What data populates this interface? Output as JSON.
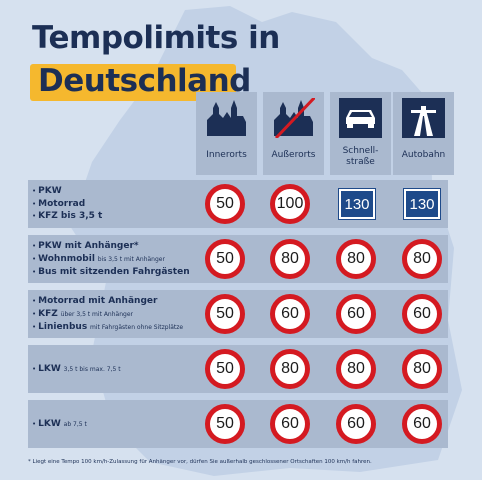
{
  "title": {
    "line1": "Tempolimits in",
    "line2": "Deutschland"
  },
  "columns": [
    {
      "label": "Innerorts",
      "icon": "town-icon"
    },
    {
      "label": "Außerorts",
      "icon": "town-crossed-icon"
    },
    {
      "label": "Schnell-\nstraße",
      "icon": "car-icon"
    },
    {
      "label": "Autobahn",
      "icon": "motorway-icon"
    }
  ],
  "rows": [
    {
      "items": [
        {
          "main": "PKW",
          "sub": ""
        },
        {
          "main": "Motorrad",
          "sub": ""
        },
        {
          "main": "KFZ bis 3,5 t",
          "sub": ""
        }
      ],
      "limits": [
        "50",
        "100",
        "130",
        "130"
      ],
      "kinds": [
        "circle",
        "circle",
        "square",
        "square"
      ]
    },
    {
      "items": [
        {
          "main": "PKW mit Anhänger*",
          "sub": ""
        },
        {
          "main": "Wohnmobil",
          "sub": "bis 3,5 t mit Anhänger"
        },
        {
          "main": "Bus mit sitzenden Fahrgästen",
          "sub": ""
        }
      ],
      "limits": [
        "50",
        "80",
        "80",
        "80"
      ],
      "kinds": [
        "circle",
        "circle",
        "circle",
        "circle"
      ]
    },
    {
      "items": [
        {
          "main": "Motorrad mit Anhänger",
          "sub": ""
        },
        {
          "main": "KFZ",
          "sub": "über 3,5 t mit Anhänger"
        },
        {
          "main": "Linienbus",
          "sub": "mit Fahrgästen ohne Sitzplätze"
        }
      ],
      "limits": [
        "50",
        "60",
        "60",
        "60"
      ],
      "kinds": [
        "circle",
        "circle",
        "circle",
        "circle"
      ]
    },
    {
      "items": [
        {
          "main": "LKW",
          "sub": "3,5 t bis max. 7,5 t"
        }
      ],
      "limits": [
        "50",
        "80",
        "80",
        "80"
      ],
      "kinds": [
        "circle",
        "circle",
        "circle",
        "circle"
      ]
    },
    {
      "items": [
        {
          "main": "LKW",
          "sub": "ab 7,5 t"
        }
      ],
      "limits": [
        "50",
        "60",
        "60",
        "60"
      ],
      "kinds": [
        "circle",
        "circle",
        "circle",
        "circle"
      ]
    }
  ],
  "footnote": "* Liegt eine Tempo 100 km/h-Zulassung für Anhänger vor, dürfen Sie außerhalb geschlossener Ortschaften 100 km/h fahren.",
  "colors": {
    "navy": "#1c2f55",
    "highlight": "#f5b82e",
    "panel": "#aab9cf",
    "sign_red": "#d41a21",
    "motorway_blue": "#1e4a8a"
  }
}
